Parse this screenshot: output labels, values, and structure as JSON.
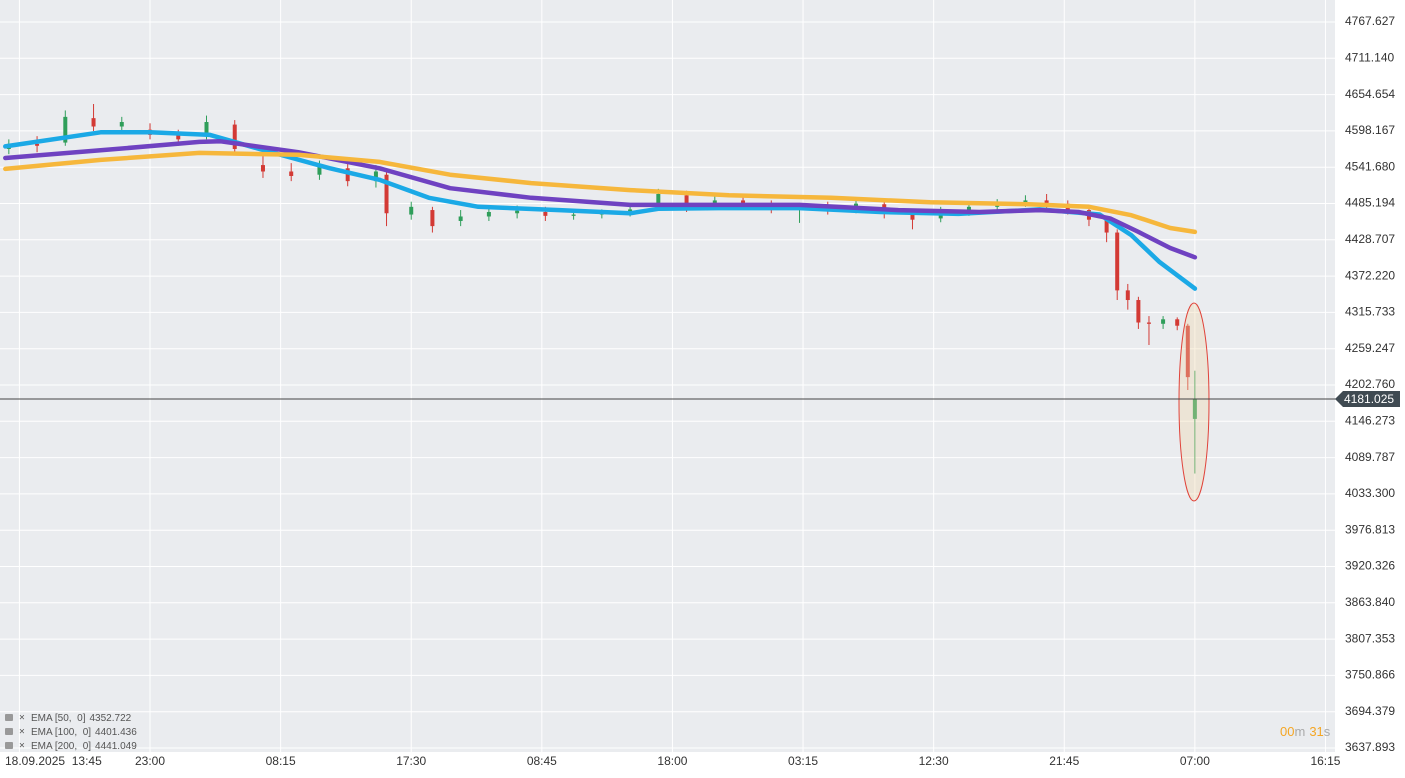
{
  "chart_data": {
    "type": "candlestick",
    "xlim": [
      -5.5,
      372.7
    ],
    "ylim": [
      3631.67,
      4801.86
    ],
    "xticks": [
      {
        "value": 0,
        "label": "18.09.2025  13:45"
      },
      {
        "value": 37,
        "label": "23:00"
      },
      {
        "value": 74,
        "label": "08:15"
      },
      {
        "value": 111,
        "label": "17:30"
      },
      {
        "value": 148,
        "label": "08:45"
      },
      {
        "value": 185,
        "label": "18:00"
      },
      {
        "value": 222,
        "label": "03:15"
      },
      {
        "value": 259,
        "label": "12:30"
      },
      {
        "value": 296,
        "label": "21:45"
      },
      {
        "value": 333,
        "label": "07:00"
      },
      {
        "value": 370,
        "label": "16:15"
      }
    ],
    "yticks": [
      4767.627,
      {
        "value": 4711.14,
        "label": "4711.140"
      },
      4654.654,
      4598.167,
      {
        "value": 4541.68,
        "label": "4541.680"
      },
      4485.194,
      4428.707,
      {
        "value": 4372.22,
        "label": "4372.220"
      },
      4315.733,
      4259.247,
      {
        "value": 4202.76,
        "label": "4202.760"
      },
      4146.273,
      4089.787,
      {
        "value": 4033.3,
        "label": "4033.300"
      },
      3976.813,
      3920.326,
      {
        "value": 3863.84,
        "label": "3863.840"
      },
      3807.353,
      3750.866,
      3694.379,
      3637.893
    ],
    "grid": true,
    "up_color": "#2f9e5a",
    "down_color": "#d33a35",
    "candles": {
      "x": [
        -3,
        5,
        13,
        21,
        29,
        37,
        45,
        53,
        61,
        69,
        77,
        85,
        93,
        101,
        104,
        111,
        117,
        125,
        133,
        141,
        149,
        157,
        165,
        173,
        181,
        189,
        197,
        205,
        213,
        221,
        229,
        237,
        245,
        253,
        261,
        269,
        277,
        285,
        291,
        297,
        303,
        308,
        311,
        314,
        317,
        320,
        324,
        328,
        331,
        333
      ],
      "open": [
        4570,
        4578,
        4580,
        4618,
        4605,
        4600,
        4592,
        4590,
        4608,
        4545,
        4535,
        4530,
        4540,
        4520,
        4530,
        4468,
        4475,
        4458,
        4465,
        4470,
        4472,
        4466,
        4468,
        4470,
        4478,
        4498,
        4482,
        4490,
        4485,
        4478,
        4480,
        4475,
        4484,
        4470,
        4462,
        4472,
        4480,
        4485,
        4490,
        4485,
        4475,
        4460,
        4440,
        4350,
        4335,
        4300,
        4298,
        4305,
        4295,
        4150
      ],
      "high": [
        4585,
        4590,
        4630,
        4640,
        4620,
        4610,
        4600,
        4622,
        4615,
        4560,
        4548,
        4552,
        4548,
        4545,
        4535,
        4488,
        4480,
        4475,
        4480,
        4482,
        4480,
        4476,
        4476,
        4482,
        4508,
        4505,
        4498,
        4498,
        4490,
        4486,
        4488,
        4492,
        4490,
        4476,
        4480,
        4486,
        4492,
        4498,
        4500,
        4490,
        4480,
        4465,
        4445,
        4360,
        4340,
        4310,
        4310,
        4308,
        4298,
        4225
      ],
      "low": [
        4562,
        4565,
        4575,
        4598,
        4595,
        4585,
        4575,
        4585,
        4560,
        4525,
        4520,
        4522,
        4512,
        4510,
        4450,
        4460,
        4440,
        4450,
        4458,
        4462,
        4458,
        4460,
        4462,
        4465,
        4474,
        4472,
        4476,
        4478,
        4470,
        4455,
        4468,
        4470,
        4462,
        4445,
        4456,
        4466,
        4475,
        4480,
        4478,
        4468,
        4450,
        4425,
        4335,
        4320,
        4290,
        4265,
        4290,
        4288,
        4195,
        4065
      ],
      "close": [
        4578,
        4575,
        4620,
        4605,
        4612,
        4592,
        4585,
        4612,
        4570,
        4535,
        4528,
        4545,
        4520,
        4535,
        4470,
        4480,
        4450,
        4465,
        4472,
        4474,
        4466,
        4468,
        4470,
        4476,
        4500,
        4480,
        4490,
        4485,
        4478,
        4480,
        4475,
        4485,
        4470,
        4460,
        4472,
        4480,
        4485,
        4490,
        4486,
        4475,
        4460,
        4440,
        4350,
        4335,
        4300,
        4298,
        4305,
        4295,
        4215,
        4181.025
      ]
    },
    "series": [
      {
        "name": "EMA [50,  0]",
        "color": "#1ba9e6",
        "x": [
          -4,
          23,
          37,
          54,
          68,
          88,
          102,
          116,
          130,
          153,
          173,
          181,
          198,
          221,
          244,
          266,
          289,
          306,
          315,
          323,
          333
        ],
        "values": [
          4574,
          4596,
          4596,
          4592,
          4570,
          4540,
          4522,
          4494,
          4480,
          4475,
          4470,
          4477,
          4478,
          4478,
          4472,
          4469,
          4476,
          4468,
          4436,
          4394,
          4352.722
        ]
      },
      {
        "name": "EMA [100,  0]",
        "color": "#6f42c1",
        "x": [
          -4,
          23,
          51,
          57,
          79,
          102,
          122,
          145,
          173,
          193,
          221,
          249,
          272,
          289,
          300,
          309,
          317,
          326,
          333
        ],
        "values": [
          4556,
          4568,
          4581,
          4582,
          4565,
          4540,
          4509,
          4494,
          4483,
          4483,
          4483,
          4475,
          4472,
          4475,
          4472,
          4462,
          4441,
          4416,
          4401.436
        ]
      },
      {
        "name": "EMA [200,  0]",
        "color": "#f6b73c",
        "x": [
          -4,
          23,
          51,
          79,
          102,
          122,
          145,
          173,
          201,
          230,
          258,
          286,
          303,
          315,
          326,
          333
        ],
        "values": [
          4539,
          4553,
          4564,
          4561,
          4550,
          4530,
          4517,
          4506,
          4498,
          4494,
          4487,
          4484,
          4480,
          4467,
          4447,
          4441.049
        ]
      }
    ],
    "last_price": 4181.025,
    "countdown": {
      "minutes": "00",
      "minutes_unit": "m",
      "seconds": "31",
      "seconds_unit": "s"
    }
  }
}
